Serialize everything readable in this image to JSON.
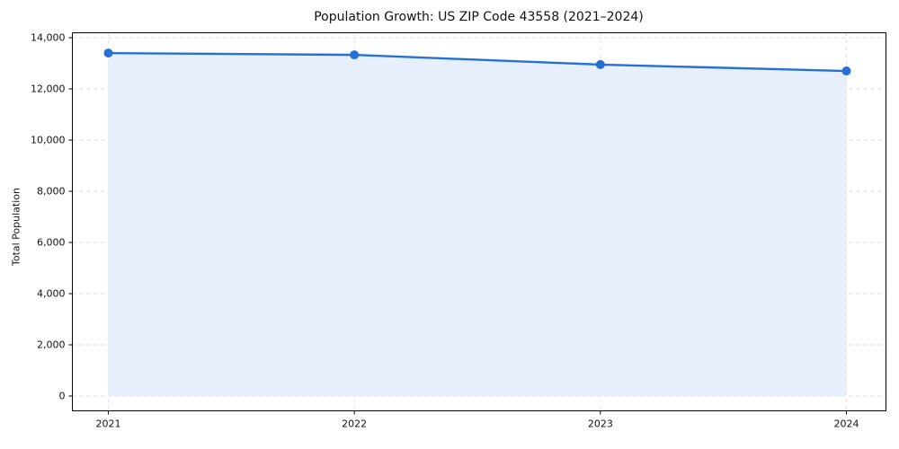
{
  "chart_data": {
    "type": "line",
    "title": "Population Growth: US ZIP Code 43558 (2021–2024)",
    "categories": [
      "2021",
      "2022",
      "2023",
      "2024"
    ],
    "series": [
      {
        "name": "Total Population",
        "values": [
          13400,
          13330,
          12950,
          12700
        ]
      }
    ],
    "xlabel": "",
    "ylabel": "Total Population",
    "ylim": [
      0,
      14000
    ],
    "ytick_step": 2000,
    "ytick_labels": [
      "0",
      "2,000",
      "4,000",
      "6,000",
      "8,000",
      "10,000",
      "12,000",
      "14,000"
    ],
    "grid": true,
    "grid_style": "dashed",
    "legend_position": "none",
    "style": {
      "line_color": "#2470d6",
      "marker_color": "#2470d6",
      "fill_color": "#e7effc",
      "grid_color": "#d9d9d9",
      "axis_color": "#000000",
      "marker_shape": "circle"
    }
  }
}
